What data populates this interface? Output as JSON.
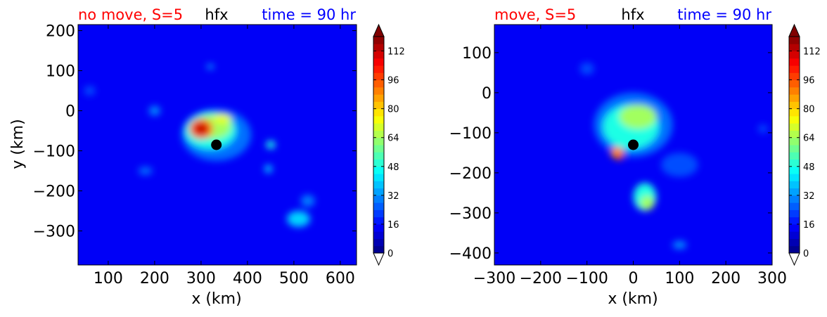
{
  "chart_data": [
    {
      "type": "heatmap",
      "title_left": "no move, S=5",
      "title_center": "hfx",
      "title_right": "time = 90 hr",
      "xlabel": "x (km)",
      "ylabel": "y (km)",
      "xlim": [
        35,
        635
      ],
      "ylim": [
        -385,
        215
      ],
      "xticks": [
        100,
        200,
        300,
        400,
        500,
        600
      ],
      "yticks": [
        -300,
        -200,
        -100,
        0,
        100,
        200
      ],
      "xtick_labels": [
        "100",
        "200",
        "300",
        "400",
        "500",
        "600"
      ],
      "ytick_labels": [
        "−300",
        "−200",
        "−100",
        "0",
        "100",
        "200"
      ],
      "center_marker": {
        "x": 333,
        "y": -85
      },
      "features": [
        {
          "x": 333,
          "y": -60,
          "rx": 75,
          "ry": 65,
          "value": 28
        },
        {
          "x": 320,
          "y": -50,
          "rx": 55,
          "ry": 45,
          "value": 48
        },
        {
          "x": 325,
          "y": -40,
          "rx": 40,
          "ry": 30,
          "value": 64
        },
        {
          "x": 300,
          "y": -45,
          "rx": 25,
          "ry": 25,
          "value": 96
        },
        {
          "x": 300,
          "y": -45,
          "rx": 14,
          "ry": 14,
          "value": 112
        },
        {
          "x": 345,
          "y": -20,
          "rx": 20,
          "ry": 12,
          "value": 72
        },
        {
          "x": 450,
          "y": -85,
          "rx": 10,
          "ry": 10,
          "value": 48
        },
        {
          "x": 510,
          "y": -270,
          "rx": 25,
          "ry": 20,
          "value": 40
        },
        {
          "x": 530,
          "y": -225,
          "rx": 15,
          "ry": 15,
          "value": 30
        },
        {
          "x": 200,
          "y": 0,
          "rx": 12,
          "ry": 12,
          "value": 32
        },
        {
          "x": 180,
          "y": -150,
          "rx": 15,
          "ry": 10,
          "value": 28
        },
        {
          "x": 445,
          "y": -145,
          "rx": 8,
          "ry": 10,
          "value": 40
        },
        {
          "x": 320,
          "y": 110,
          "rx": 8,
          "ry": 6,
          "value": 36
        },
        {
          "x": 60,
          "y": 50,
          "rx": 12,
          "ry": 12,
          "value": 24
        }
      ],
      "colorbar": {
        "ticks": [
          0,
          16,
          32,
          48,
          64,
          80,
          96,
          112
        ],
        "tick_labels": [
          "0",
          "16",
          "32",
          "48",
          "64",
          "80",
          "96",
          "112"
        ],
        "range": [
          0,
          120
        ],
        "extend": "both"
      }
    },
    {
      "type": "heatmap",
      "title_left": "move, S=5",
      "title_center": "hfx",
      "title_right": "time = 90 hr",
      "xlabel": "x (km)",
      "ylabel": "",
      "xlim": [
        -300,
        300
      ],
      "ylim": [
        -430,
        170
      ],
      "xticks": [
        -300,
        -200,
        -100,
        0,
        100,
        200,
        300
      ],
      "yticks": [
        -400,
        -300,
        -200,
        -100,
        0,
        100
      ],
      "xtick_labels": [
        "−300",
        "−200",
        "−100",
        "0",
        "100",
        "200",
        "300"
      ],
      "ytick_labels": [
        "−400",
        "−300",
        "−200",
        "−100",
        "0",
        "100"
      ],
      "center_marker": {
        "x": 0,
        "y": -130
      },
      "features": [
        {
          "x": 0,
          "y": -80,
          "rx": 85,
          "ry": 80,
          "value": 28
        },
        {
          "x": -5,
          "y": -85,
          "rx": 60,
          "ry": 55,
          "value": 48
        },
        {
          "x": 10,
          "y": -60,
          "rx": 40,
          "ry": 30,
          "value": 64
        },
        {
          "x": -35,
          "y": -150,
          "rx": 14,
          "ry": 14,
          "value": 88
        },
        {
          "x": -30,
          "y": -160,
          "rx": 8,
          "ry": 8,
          "value": 96
        },
        {
          "x": 25,
          "y": -260,
          "rx": 25,
          "ry": 35,
          "value": 48
        },
        {
          "x": 30,
          "y": -275,
          "rx": 15,
          "ry": 18,
          "value": 64
        },
        {
          "x": 100,
          "y": -180,
          "rx": 40,
          "ry": 30,
          "value": 24
        },
        {
          "x": -100,
          "y": 60,
          "rx": 15,
          "ry": 15,
          "value": 24
        },
        {
          "x": 100,
          "y": -380,
          "rx": 15,
          "ry": 10,
          "value": 32
        },
        {
          "x": 280,
          "y": -90,
          "rx": 10,
          "ry": 10,
          "value": 24
        }
      ],
      "colorbar": {
        "ticks": [
          0,
          16,
          32,
          48,
          64,
          80,
          96,
          112
        ],
        "tick_labels": [
          "0",
          "16",
          "32",
          "48",
          "64",
          "80",
          "96",
          "112"
        ],
        "range": [
          0,
          120
        ],
        "extend": "both"
      }
    }
  ]
}
